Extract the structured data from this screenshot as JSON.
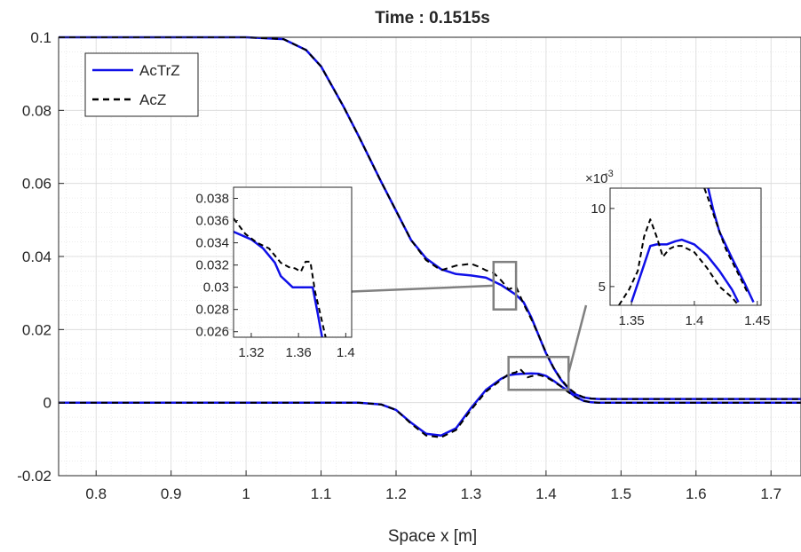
{
  "chart_data": {
    "type": "line",
    "title": "Time : 0.1515s",
    "xlabel": "Space x [m]",
    "ylabel": "",
    "xlim": [
      0.75,
      1.74
    ],
    "ylim": [
      -0.02,
      0.1
    ],
    "xticks": [
      0.8,
      0.9,
      1,
      1.1,
      1.2,
      1.3,
      1.4,
      1.5,
      1.6,
      1.7
    ],
    "yticks": [
      -0.02,
      0,
      0.02,
      0.04,
      0.06,
      0.08,
      0.1
    ],
    "xtick_labels": [
      "0.8",
      "0.9",
      "1",
      "1.1",
      "1.2",
      "1.3",
      "1.4",
      "1.5",
      "1.6",
      "1.7"
    ],
    "ytick_labels": [
      "-0.02",
      "0",
      "0.02",
      "0.04",
      "0.06",
      "0.08",
      "0.1"
    ],
    "grid": true,
    "minor_grid": true,
    "legend_position": "top-left",
    "legend": [
      "AcTrZ",
      "AcZ"
    ],
    "colors": {
      "AcTrZ": "#1010e8",
      "AcZ": "#000000"
    },
    "series": [
      {
        "name": "AcTrZ",
        "style": "solid",
        "curves": [
          {
            "x": [
              0.75,
              1.0,
              1.05,
              1.08,
              1.1,
              1.13,
              1.15,
              1.18,
              1.2,
              1.22,
              1.24,
              1.26,
              1.28,
              1.3,
              1.32,
              1.34,
              1.36,
              1.37,
              1.38,
              1.39,
              1.4,
              1.41,
              1.42,
              1.43,
              1.44,
              1.45,
              1.46,
              1.47,
              1.5,
              1.74
            ],
            "y": [
              0.1,
              0.1,
              0.0995,
              0.0965,
              0.092,
              0.081,
              0.073,
              0.0605,
              0.0525,
              0.0445,
              0.0395,
              0.0365,
              0.0352,
              0.0348,
              0.0342,
              0.0322,
              0.0295,
              0.0275,
              0.0235,
              0.0185,
              0.0135,
              0.0095,
              0.0062,
              0.0038,
              0.0022,
              0.0014,
              0.0011,
              0.001,
              0.001,
              0.001
            ]
          },
          {
            "x": [
              0.75,
              1.15,
              1.18,
              1.2,
              1.22,
              1.24,
              1.26,
              1.28,
              1.3,
              1.32,
              1.34,
              1.35,
              1.36,
              1.37,
              1.38,
              1.39,
              1.4,
              1.41,
              1.42,
              1.43,
              1.44,
              1.45,
              1.46,
              1.47,
              1.5,
              1.74
            ],
            "y": [
              0,
              0,
              -0.0005,
              -0.002,
              -0.0055,
              -0.0085,
              -0.009,
              -0.007,
              -0.0015,
              0.0035,
              0.0065,
              0.0075,
              0.0078,
              0.0079,
              0.008,
              0.0079,
              0.0073,
              0.006,
              0.0045,
              0.003,
              0.0015,
              0.0005,
              0.0001,
              0,
              0,
              0
            ]
          }
        ]
      },
      {
        "name": "AcZ",
        "style": "dashed",
        "curves": [
          {
            "x": [
              0.75,
              1.0,
              1.05,
              1.08,
              1.1,
              1.13,
              1.15,
              1.18,
              1.2,
              1.22,
              1.24,
              1.26,
              1.28,
              1.3,
              1.31,
              1.32,
              1.33,
              1.34,
              1.35,
              1.36,
              1.37,
              1.38,
              1.39,
              1.4,
              1.41,
              1.42,
              1.43,
              1.44,
              1.45,
              1.46,
              1.47,
              1.5,
              1.74
            ],
            "y": [
              0.1,
              0.1,
              0.0995,
              0.0965,
              0.092,
              0.081,
              0.073,
              0.0605,
              0.0525,
              0.0445,
              0.039,
              0.0362,
              0.0375,
              0.038,
              0.0372,
              0.0362,
              0.0355,
              0.0335,
              0.031,
              0.0318,
              0.027,
              0.023,
              0.0185,
              0.0137,
              0.0096,
              0.0064,
              0.004,
              0.0024,
              0.0015,
              0.0011,
              0.001,
              0.001,
              0.001
            ]
          },
          {
            "x": [
              0.75,
              1.15,
              1.18,
              1.2,
              1.22,
              1.24,
              1.26,
              1.28,
              1.3,
              1.32,
              1.34,
              1.35,
              1.36,
              1.365,
              1.37,
              1.375,
              1.38,
              1.39,
              1.4,
              1.41,
              1.42,
              1.43,
              1.44,
              1.45,
              1.46,
              1.47,
              1.5,
              1.74
            ],
            "y": [
              0,
              0,
              -0.0005,
              -0.002,
              -0.0058,
              -0.009,
              -0.0095,
              -0.0075,
              -0.002,
              0.003,
              0.0062,
              0.0078,
              0.0083,
              0.0093,
              0.0082,
              0.0069,
              0.0072,
              0.0076,
              0.007,
              0.0058,
              0.0044,
              0.0028,
              0.0014,
              0.0005,
              0.0001,
              0,
              0,
              0
            ]
          }
        ]
      }
    ],
    "insets": [
      {
        "xlim": [
          1.305,
          1.405
        ],
        "ylim": [
          0.0255,
          0.039
        ],
        "xtick_labels": [
          "1.32",
          "1.36",
          "1.4"
        ],
        "xticks": [
          1.32,
          1.36,
          1.4
        ],
        "ytick_labels": [
          "0.038",
          "0.036",
          "0.034",
          "0.032",
          "0.03",
          "0.028",
          "0.026"
        ],
        "yticks": [
          0.038,
          0.036,
          0.034,
          0.032,
          0.03,
          0.028,
          0.026
        ],
        "zoom_box": {
          "x": [
            1.33,
            1.36
          ],
          "y": [
            0.0255,
            0.0385
          ]
        },
        "series": [
          {
            "name": "AcTrZ",
            "x": [
              1.305,
              1.32,
              1.33,
              1.34,
              1.345,
              1.355,
              1.365,
              1.372,
              1.376,
              1.38,
              1.385
            ],
            "y": [
              0.035,
              0.0343,
              0.0335,
              0.0322,
              0.031,
              0.03,
              0.03,
              0.03,
              0.0278,
              0.0255,
              0.024
            ]
          },
          {
            "name": "AcZ",
            "x": [
              1.305,
              1.315,
              1.325,
              1.335,
              1.345,
              1.352,
              1.357,
              1.362,
              1.366,
              1.37,
              1.374,
              1.378,
              1.383
            ],
            "y": [
              0.0362,
              0.0348,
              0.034,
              0.0335,
              0.0322,
              0.0318,
              0.0317,
              0.0314,
              0.0323,
              0.0323,
              0.0296,
              0.0278,
              0.0255
            ]
          }
        ]
      },
      {
        "xlim": [
          1.333,
          1.453
        ],
        "ylim": [
          0.0038,
          0.0113
        ],
        "exponent_label": "×10",
        "exponent_power": "-3",
        "xtick_labels": [
          "1.35",
          "1.4",
          "1.45"
        ],
        "xticks": [
          1.35,
          1.4,
          1.45
        ],
        "ytick_labels": [
          "10",
          "5"
        ],
        "yticks": [
          0.01,
          0.005
        ],
        "zoom_box": {
          "x": [
            1.35,
            1.43
          ],
          "y": [
            0.0035,
            0.0125
          ]
        },
        "series": [
          {
            "name": "AcTrZ",
            "x": [
              1.35,
              1.355,
              1.36,
              1.365,
              1.37,
              1.378,
              1.385,
              1.39,
              1.4,
              1.41,
              1.42,
              1.43,
              1.435
            ],
            "y": [
              0.004,
              0.0052,
              0.0064,
              0.0076,
              0.0077,
              0.0077,
              0.0079,
              0.008,
              0.0077,
              0.007,
              0.006,
              0.0048,
              0.004
            ]
          },
          {
            "name": "AcTrZ",
            "x": [
              1.411,
              1.415,
              1.42,
              1.43,
              1.44,
              1.447
            ],
            "y": [
              0.0113,
              0.0099,
              0.0085,
              0.0068,
              0.0052,
              0.004
            ]
          },
          {
            "name": "AcZ",
            "x": [
              1.34,
              1.348,
              1.355,
              1.36,
              1.365,
              1.37,
              1.375,
              1.38,
              1.385,
              1.39,
              1.4,
              1.41,
              1.42,
              1.43,
              1.435
            ],
            "y": [
              0.0038,
              0.0048,
              0.006,
              0.0082,
              0.0093,
              0.0082,
              0.0069,
              0.0074,
              0.0076,
              0.0076,
              0.0072,
              0.0062,
              0.005,
              0.0043,
              0.0038
            ]
          },
          {
            "name": "AcZ",
            "x": [
              1.408,
              1.412,
              1.417,
              1.425,
              1.435,
              1.443
            ],
            "y": [
              0.0113,
              0.0104,
              0.0092,
              0.0074,
              0.0058,
              0.0045
            ]
          }
        ]
      }
    ]
  }
}
